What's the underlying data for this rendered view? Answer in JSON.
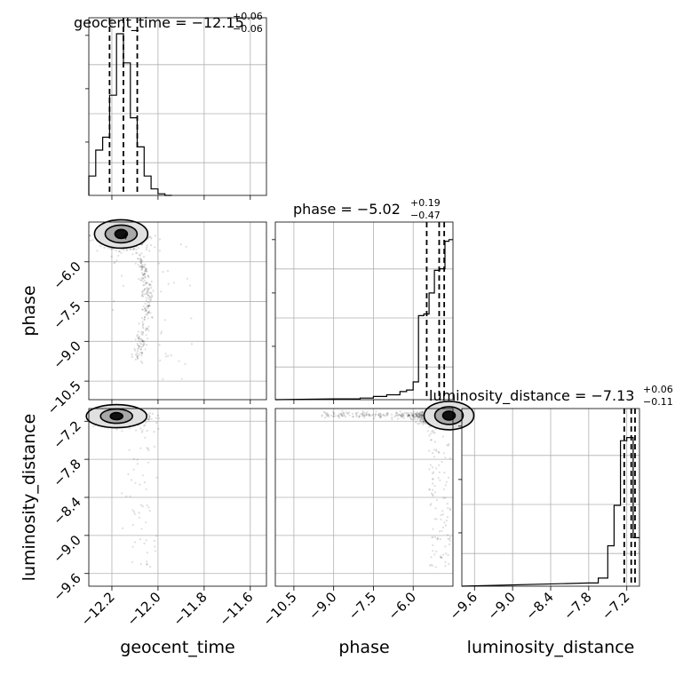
{
  "chart_data": {
    "type": "corner",
    "parameters": [
      "geocent_time",
      "phase",
      "luminosity_distance"
    ],
    "titles": [
      {
        "param": "geocent_time",
        "prefix": "geocent_time = ",
        "median": "−12.15",
        "plus": "+0.06",
        "minus": "−0.06"
      },
      {
        "param": "phase",
        "prefix": "phase = ",
        "median": "−5.02",
        "plus": "+0.19",
        "minus": "−0.47"
      },
      {
        "param": "luminosity_distance",
        "prefix": "luminosity_distance = ",
        "median": "−7.13",
        "plus": "+0.06",
        "minus": "−0.11"
      }
    ],
    "ranges": {
      "geocent_time": [
        -12.3,
        -11.53
      ],
      "phase": [
        -11.2,
        -4.5
      ],
      "luminosity_distance": [
        -9.8,
        -7.0
      ]
    },
    "ticks": {
      "geocent_time": {
        "values": [
          -12.2,
          -12.0,
          -11.8,
          -11.6
        ],
        "labels": [
          "−12.2",
          "−12.0",
          "−11.8",
          "−11.6"
        ]
      },
      "phase": {
        "values": [
          -10.5,
          -9.0,
          -7.5,
          -6.0
        ],
        "labels": [
          "−10.5",
          "−9.0",
          "−7.5",
          "−6.0"
        ]
      },
      "luminosity_distance": {
        "values": [
          -9.6,
          -9.0,
          -8.4,
          -7.8,
          -7.2
        ],
        "labels": [
          "−9.6",
          "−9.0",
          "−8.4",
          "−7.8",
          "−7.2"
        ]
      }
    },
    "histograms": {
      "geocent_time": {
        "edges": [
          -12.3,
          -12.27,
          -12.24,
          -12.21,
          -12.18,
          -12.15,
          -12.12,
          -12.09,
          -12.06,
          -12.03,
          -12.0,
          -11.97,
          -11.94
        ],
        "counts": [
          0.12,
          0.28,
          0.36,
          0.62,
          1.0,
          0.82,
          0.48,
          0.3,
          0.12,
          0.04,
          0.01,
          0.0
        ]
      },
      "phase": {
        "edges": [
          -9.0,
          -8.0,
          -7.5,
          -7.0,
          -6.5,
          -6.25,
          -6.0,
          -5.8,
          -5.6,
          -5.4,
          -5.2,
          -5.0,
          -4.8,
          -4.65,
          -4.5
        ],
        "counts": [
          0.005,
          0.01,
          0.02,
          0.03,
          0.05,
          0.06,
          0.11,
          0.52,
          0.53,
          0.66,
          0.8,
          0.81,
          0.98,
          0.99
        ]
      },
      "luminosity_distance": {
        "edges": [
          -7.8,
          -7.65,
          -7.5,
          -7.4,
          -7.3,
          -7.2,
          -7.1,
          -7.0
        ],
        "counts": [
          0.02,
          0.05,
          0.25,
          0.5,
          0.9,
          0.92,
          0.3
        ]
      }
    },
    "quantile_lines": {
      "geocent_time": [
        -12.21,
        -12.15,
        -12.09
      ],
      "phase": [
        -5.49,
        -5.02,
        -4.83
      ],
      "luminosity_distance": [
        -7.24,
        -7.13,
        -7.07
      ]
    },
    "contour_label": "4",
    "xlabels": [
      "geocent_time",
      "phase",
      "luminosity_distance"
    ],
    "ylabels": [
      "phase",
      "luminosity_distance"
    ]
  }
}
